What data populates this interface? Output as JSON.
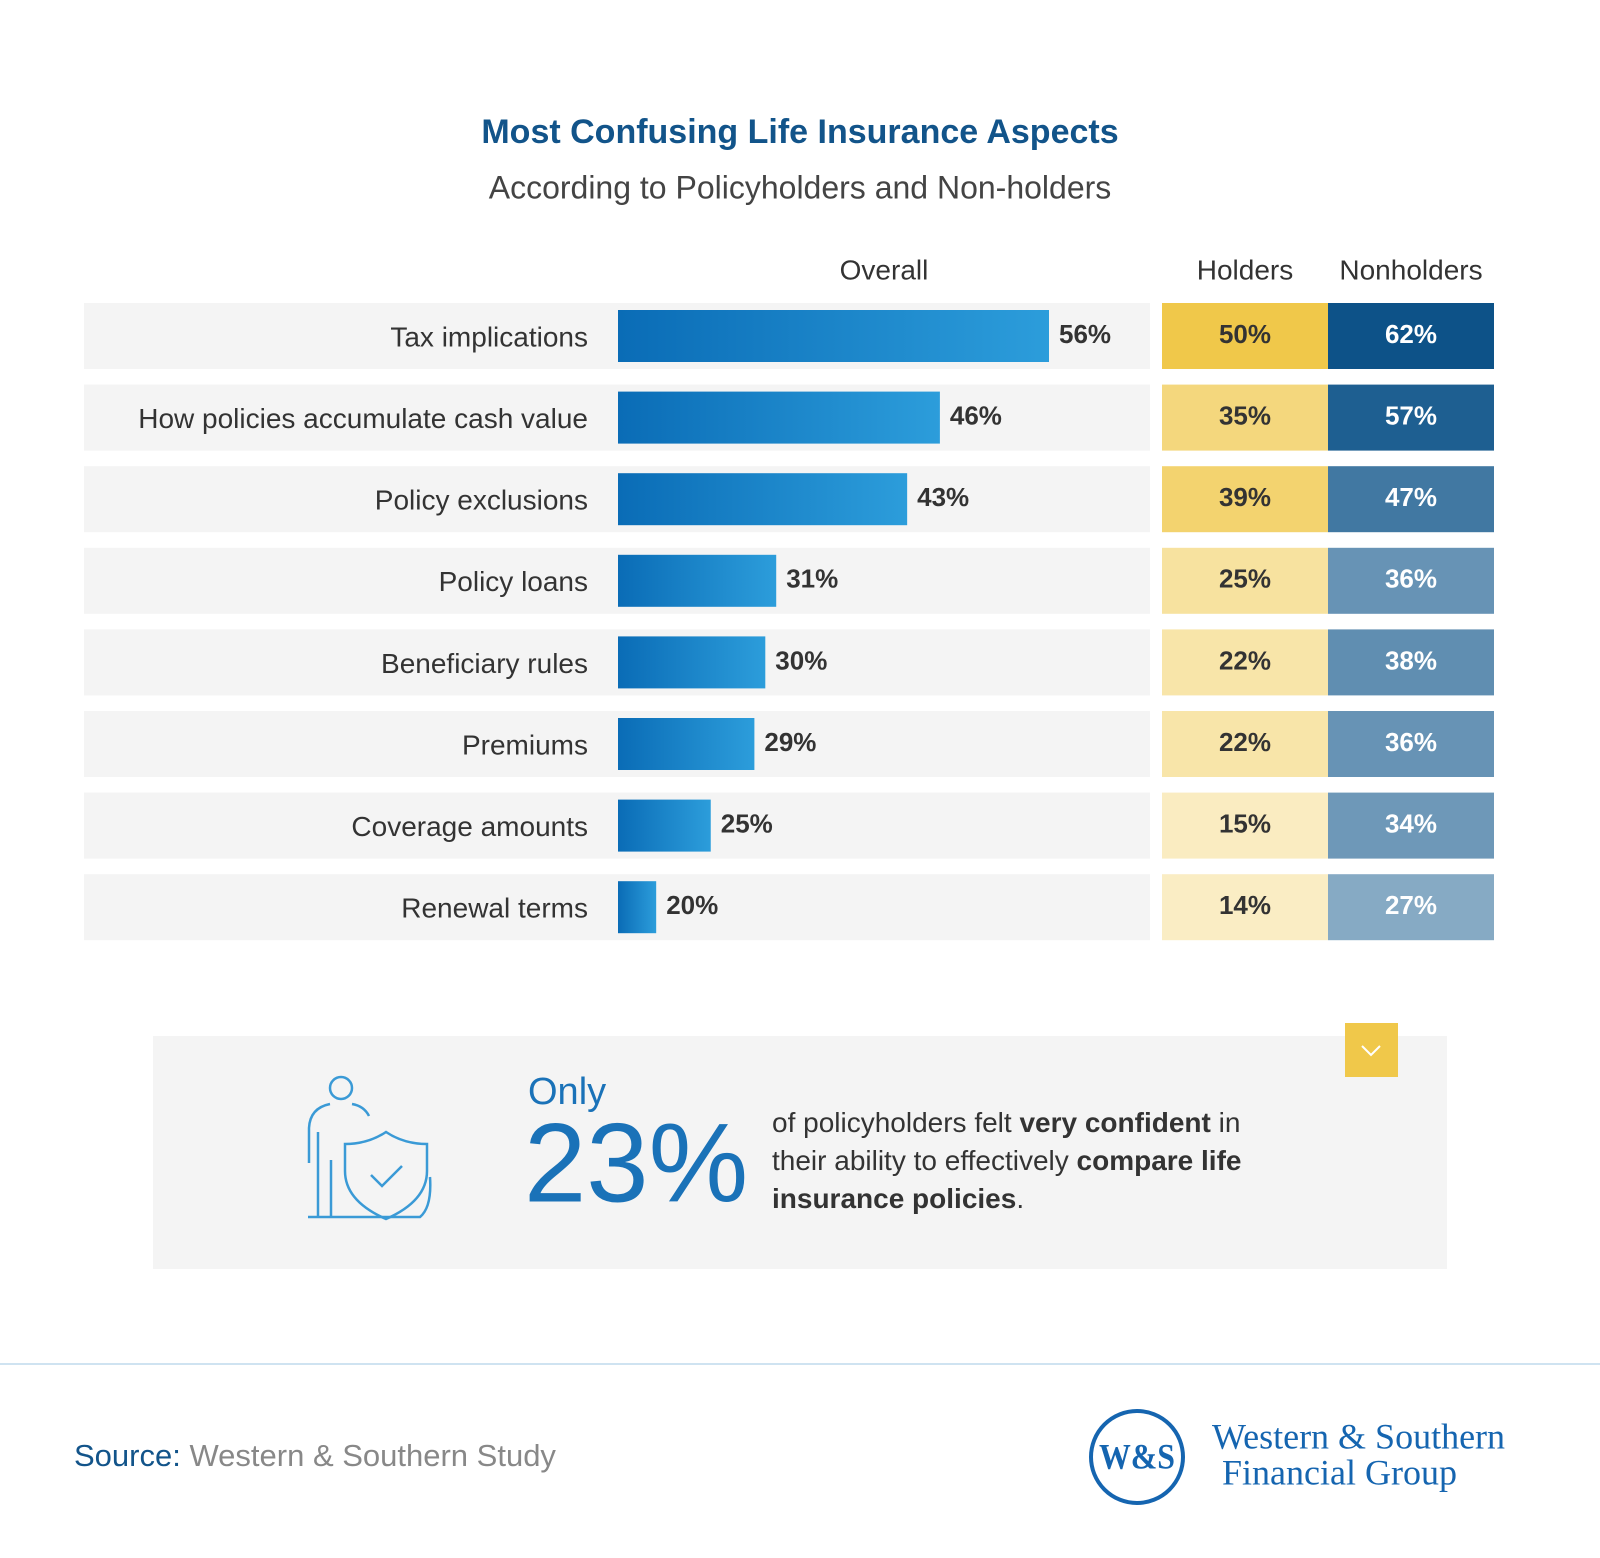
{
  "chart_data": {
    "type": "bar",
    "title": "Most Confusing Life Insurance Aspects",
    "subtitle": "According to Policyholders and Non-holders",
    "overall_label": "Overall",
    "categories": [
      "Tax implications",
      "How policies accumulate cash value",
      "Policy exclusions",
      "Policy loans",
      "Beneficiary rules",
      "Premiums",
      "Coverage amounts",
      "Renewal terms"
    ],
    "values": [
      56,
      46,
      43,
      31,
      30,
      29,
      25,
      20
    ],
    "value_labels": [
      "56%",
      "46%",
      "43%",
      "31%",
      "30%",
      "29%",
      "25%",
      "20%"
    ],
    "colors": [
      "#0a6cb6",
      "#2c9ddb"
    ],
    "xlim": [
      16.5,
      56
    ],
    "series": [
      {
        "name": "Holders",
        "values": [
          50,
          35,
          39,
          25,
          22,
          22,
          15,
          14
        ],
        "value_labels": [
          "50%",
          "35%",
          "39%",
          "25%",
          "22%",
          "22%",
          "15%",
          "14%"
        ],
        "color_range": [
          "#faedc4",
          "#f0c84a"
        ]
      },
      {
        "name": "Nonholders",
        "values": [
          62,
          57,
          47,
          36,
          38,
          36,
          34,
          27
        ],
        "value_labels": [
          "62%",
          "57%",
          "47%",
          "36%",
          "38%",
          "36%",
          "34%",
          "27%"
        ],
        "color_range": [
          "#86aac4",
          "#0d5288"
        ]
      }
    ]
  },
  "callout": {
    "prefix": "Only",
    "value": 23,
    "value_label": "23%",
    "text": [
      {
        "text": "of policyholders felt ",
        "bold": false
      },
      {
        "text": "very confident",
        "bold": true
      },
      {
        "text": " in their ability to effectively ",
        "bold": false
      },
      {
        "text": "compare life insurance policies",
        "bold": true
      },
      {
        "text": ".",
        "bold": false
      }
    ]
  },
  "source": {
    "label": "Source:",
    "text": "Western & Southern Study"
  },
  "logo": {
    "mark": "W&S",
    "line1": "Western & Southern",
    "line2": "Financial Group"
  }
}
